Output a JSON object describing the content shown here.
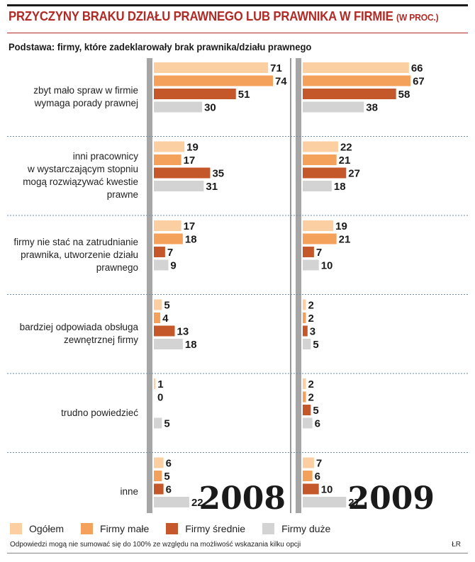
{
  "title": "PRZYCZYNY BRAKU DZIAŁU PRAWNEGO LUB PRAWNIKA W FIRMIE",
  "title_unit": "(W PROC.)",
  "subtitle": "Podstawa: firmy, które zadeklarowały brak prawnika/działu prawnego",
  "footnote": "Odpowiedzi mogą nie sumować się do 100% ze względu na możliwość wskazania kilku opcji",
  "credit": "ŁR",
  "colors": {
    "title": "#b22a25",
    "ogolem": "#fbcfa2",
    "male": "#f4a15c",
    "srednie": "#c4582a",
    "duze": "#d3d3d3",
    "axis": "#a6a6a6"
  },
  "chart_data": {
    "type": "bar",
    "orientation": "horizontal",
    "title": "PRZYCZYNY BRAKU DZIAŁU PRAWNEGO LUB PRAWNIKA W FIRMIE (W PROC.)",
    "categories": [
      [
        "zbyt mało spraw w firmie",
        "wymaga porady prawnej"
      ],
      [
        "inni pracownicy",
        "w wystarczającym stopniu",
        "mogą rozwiązywać kwestie",
        "prawne"
      ],
      [
        "firmy nie stać na zatrudnianie",
        "prawnika, utworzenie działu",
        "prawnego"
      ],
      [
        "bardziej odpowiada obsługa",
        "zewnętrznej firmy"
      ],
      [
        "trudno powiedzieć"
      ],
      [
        "inne"
      ]
    ],
    "legend": [
      "Ogółem",
      "Firmy małe",
      "Firmy średnie",
      "Firmy duże"
    ],
    "xlim": [
      0,
      80
    ],
    "panels": [
      {
        "year": "2008",
        "series": [
          {
            "name": "Ogółem",
            "values": [
              71,
              19,
              17,
              5,
              1,
              6
            ]
          },
          {
            "name": "Firmy małe",
            "values": [
              74,
              17,
              18,
              4,
              0,
              5
            ]
          },
          {
            "name": "Firmy średnie",
            "values": [
              51,
              35,
              7,
              13,
              null,
              6
            ]
          },
          {
            "name": "Firmy duże",
            "values": [
              30,
              31,
              9,
              18,
              5,
              22
            ]
          }
        ]
      },
      {
        "year": "2009",
        "series": [
          {
            "name": "Ogółem",
            "values": [
              66,
              22,
              19,
              2,
              2,
              7
            ]
          },
          {
            "name": "Firmy małe",
            "values": [
              67,
              21,
              21,
              2,
              2,
              6
            ]
          },
          {
            "name": "Firmy średnie",
            "values": [
              58,
              27,
              7,
              3,
              5,
              10
            ]
          },
          {
            "name": "Firmy duże",
            "values": [
              38,
              18,
              10,
              5,
              6,
              27
            ]
          }
        ]
      }
    ]
  }
}
